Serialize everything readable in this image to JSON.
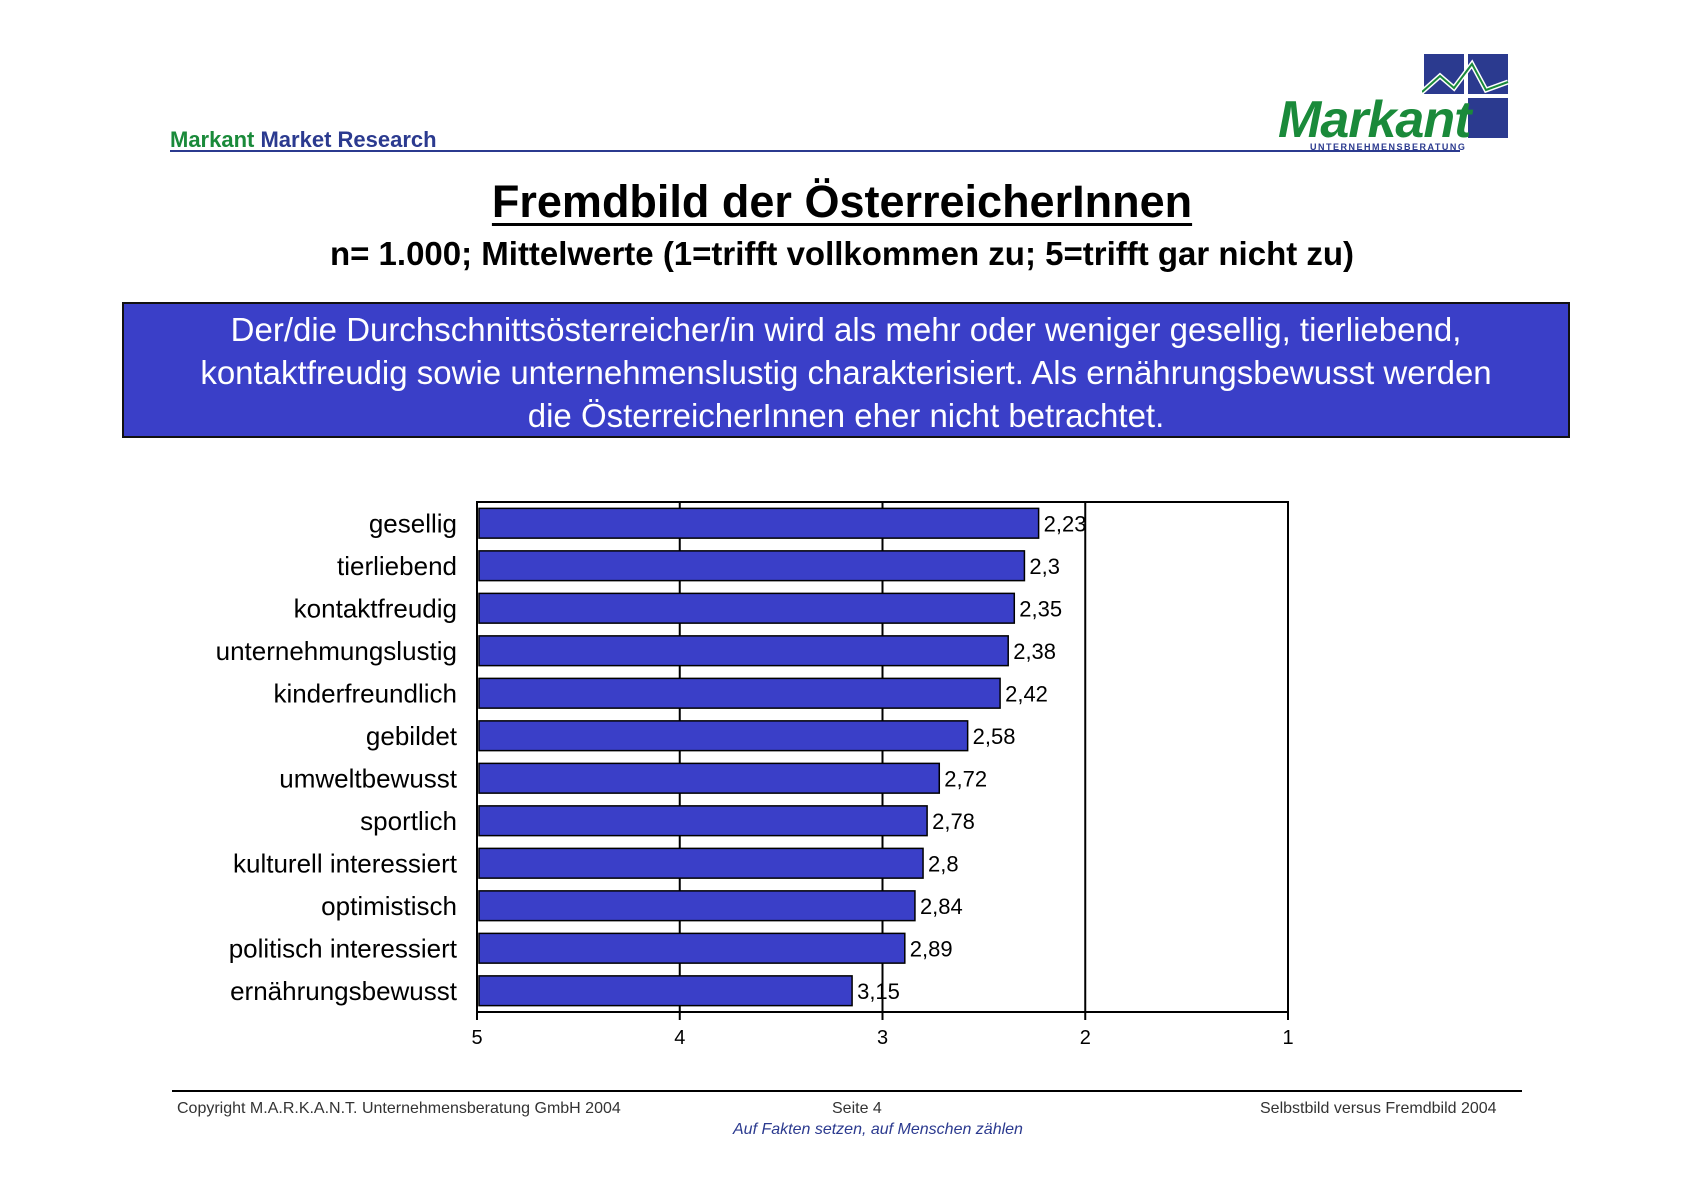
{
  "header": {
    "brand_part1": "Markant",
    "brand_part2": "Market Research"
  },
  "logo": {
    "word": "Markant",
    "subtitle": "UNTERNEHMENSBERATUNG",
    "colors": {
      "green": "#1a8a3a",
      "blue": "#2b3a8f"
    }
  },
  "title": "Fremdbild der ÖsterreicherInnen",
  "subtitle": "n= 1.000; Mittelwerte (1=trifft vollkommen zu; 5=trifft gar nicht zu)",
  "summary": {
    "line1": "Der/die Durchschnittsösterreicher/in wird als mehr oder weniger gesellig, tierliebend,",
    "line2": "kontaktfreudig sowie unternehmenslustig charakterisiert. Als ernährungsbewusst werden",
    "line3": "die ÖsterreicherInnen eher nicht betrachtet.",
    "background": "#3a3fc8"
  },
  "chart_data": {
    "type": "bar",
    "orientation": "horizontal",
    "categories": [
      "gesellig",
      "tierliebend",
      "kontaktfreudig",
      "unternehmungslustig",
      "kinderfreundlich",
      "gebildet",
      "umweltbewusst",
      "sportlich",
      "kulturell interessiert",
      "optimistisch",
      "politisch interessiert",
      "ernährungsbewusst"
    ],
    "values": [
      2.23,
      2.3,
      2.35,
      2.38,
      2.42,
      2.58,
      2.72,
      2.78,
      2.8,
      2.84,
      2.89,
      3.15
    ],
    "value_labels": [
      "2,23",
      "2,3",
      "2,35",
      "2,38",
      "2,42",
      "2,58",
      "2,72",
      "2,78",
      "2,8",
      "2,84",
      "2,89",
      "3,15"
    ],
    "x_ticks": [
      5,
      4,
      3,
      2,
      1
    ],
    "xlim": [
      5,
      1
    ],
    "reversed_axis": true,
    "grid": "vertical",
    "bar_color": "#3a3fc8",
    "legend": "none"
  },
  "footer": {
    "copyright": "Copyright M.A.R.K.A.N.T. Unternehmensberatung GmbH 2004",
    "page": "Seite 4",
    "slogan": "Auf Fakten setzen, auf Menschen zählen",
    "doc_title": "Selbstbild versus Fremdbild 2004"
  }
}
